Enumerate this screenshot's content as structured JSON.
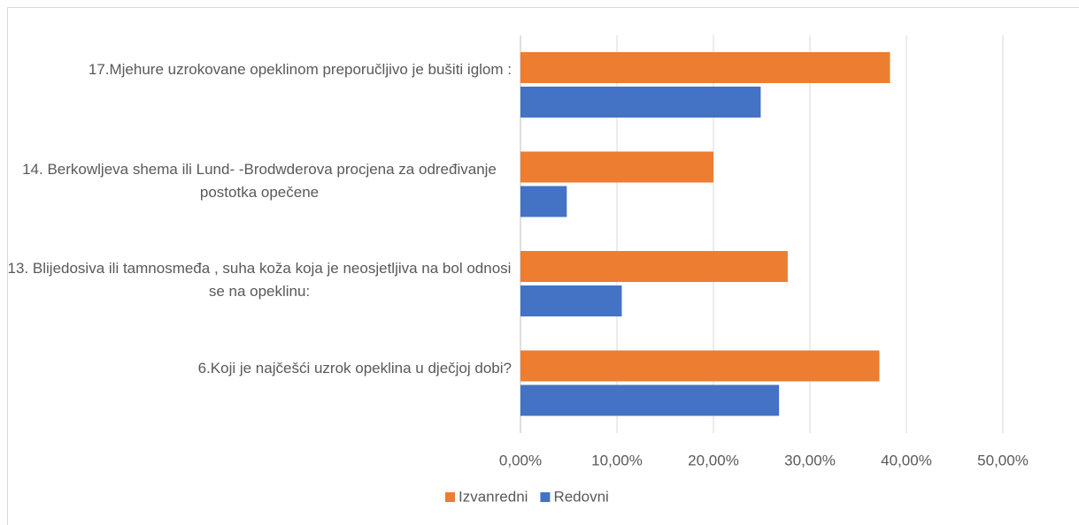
{
  "chart_data": {
    "type": "bar",
    "orientation": "horizontal",
    "categories": [
      "17.Mjehure uzrokovane opeklinom preporučljivo je bušiti iglom :",
      "14. Berkowljeva shema ili Lund- -Brodwderova procjena za određivanje postotka opečene",
      "13. Blijedosiva ili tamnosmeđa , suha koža koja je neosjetljiva na bol odnosi se na opeklinu:",
      "6.Koji je najčešći uzrok opeklina u dječjoj dobi?"
    ],
    "series": [
      {
        "name": "Izvanredni",
        "color": "#ed7d31",
        "values": [
          38.3,
          20.0,
          27.7,
          37.2
        ]
      },
      {
        "name": "Redovni",
        "color": "#4472c4",
        "values": [
          24.9,
          4.8,
          10.5,
          26.8
        ]
      }
    ],
    "xlim": [
      0,
      50
    ],
    "xticks": [
      {
        "value": 0,
        "label": "0,00%"
      },
      {
        "value": 10,
        "label": "10,00%"
      },
      {
        "value": 20,
        "label": "20,00%"
      },
      {
        "value": 30,
        "label": "30,00%"
      },
      {
        "value": 40,
        "label": "40,00%"
      },
      {
        "value": 50,
        "label": "50,00%"
      }
    ],
    "grid": true,
    "legend": "bottom"
  }
}
